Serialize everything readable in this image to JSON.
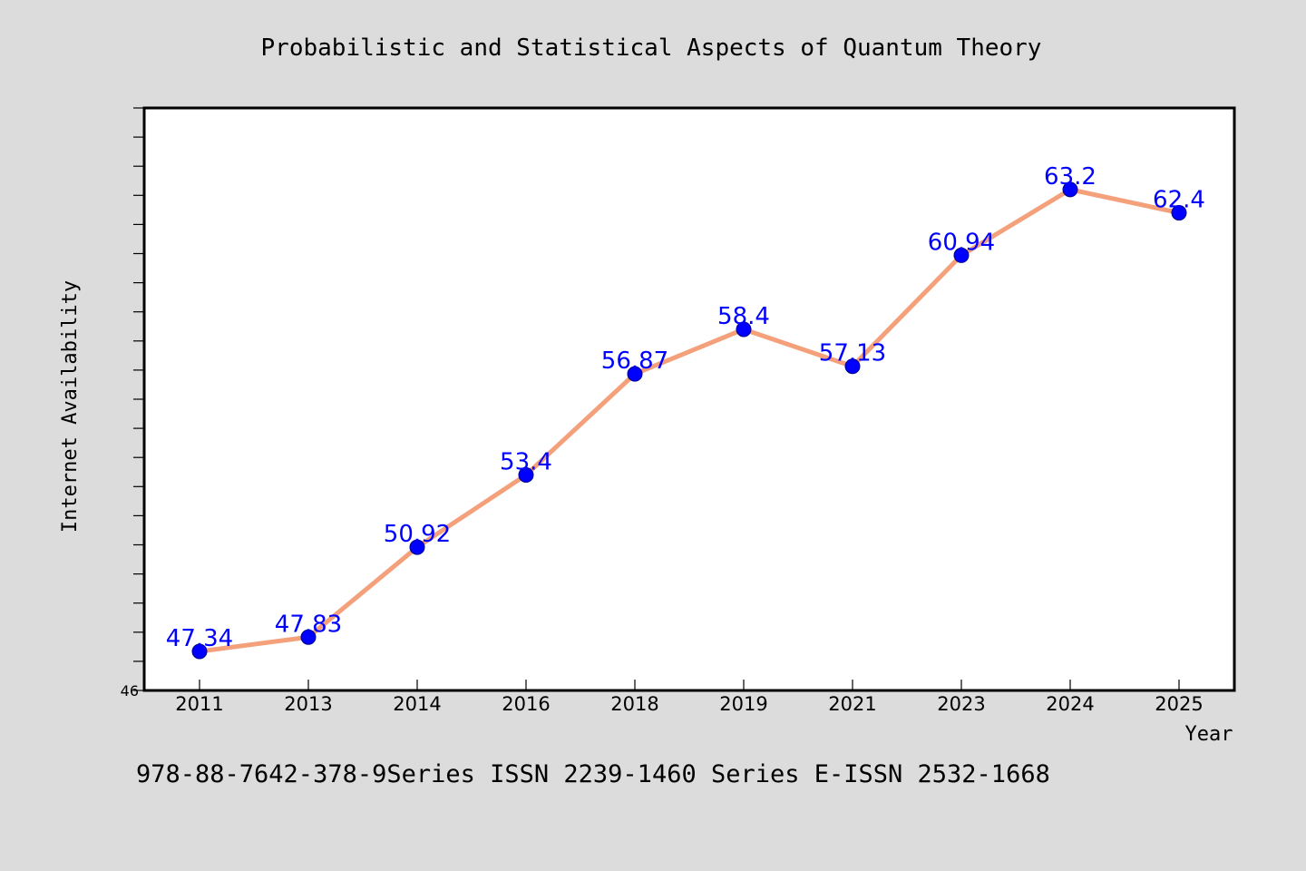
{
  "chart_data": {
    "type": "line",
    "title": "Probabilistic and Statistical Aspects of Quantum Theory",
    "xlabel": "Year",
    "ylabel": "Internet Availability",
    "categories": [
      "2011",
      "2013",
      "2014",
      "2016",
      "2018",
      "2019",
      "2021",
      "2023",
      "2024",
      "2025"
    ],
    "series": [
      {
        "values": [
          47.34,
          47.83,
          50.92,
          53.4,
          56.87,
          58.4,
          57.13,
          60.94,
          63.2,
          62.4
        ],
        "data_labels": [
          "47.34",
          "47.83",
          "50.92",
          "53.4",
          "56.87",
          "58.4",
          "57.13",
          "60.94",
          "63.2",
          "62.4"
        ]
      }
    ],
    "ylim": [
      46,
      66
    ],
    "yticks_labeled": [
      "46"
    ],
    "grid": false,
    "line_color": "#f4a07a",
    "marker_color": "#0000ff",
    "label_color": "#0000ff",
    "background_color": "#dcdcdc",
    "plot_background": "#ffffff"
  },
  "footer": {
    "text": "978-88-7642-378-9Series ISSN 2239-1460 Series E-ISSN 2532-1668"
  }
}
